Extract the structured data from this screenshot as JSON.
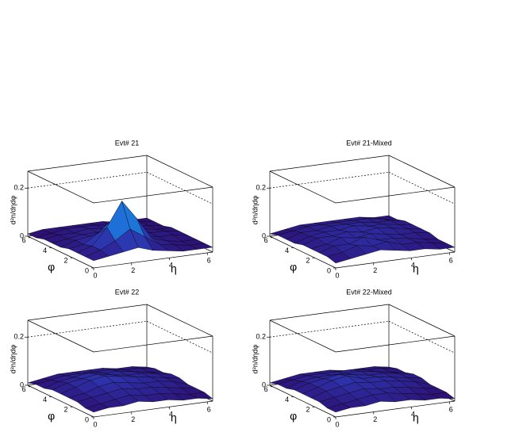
{
  "chart_data": [
    {
      "type": "surface",
      "title": "Evt# 21",
      "x_label": "η",
      "y_label": "φ",
      "z_label": "d²n/dηdφ",
      "x": [
        0,
        0.79,
        1.57,
        2.36,
        3.14,
        3.93,
        4.71,
        5.5,
        6.28
      ],
      "y": [
        0,
        0.79,
        1.57,
        2.36,
        3.14,
        3.93,
        4.71,
        5.5,
        6.28
      ],
      "xlim": [
        0,
        6.28
      ],
      "ylim": [
        0,
        6.28
      ],
      "zlim": [
        0,
        0.27
      ],
      "xticks": [
        0,
        2,
        4,
        6
      ],
      "yticks": [
        0,
        2,
        4,
        6
      ],
      "zticks": [
        0,
        0.2
      ],
      "colormap": [
        "#2b0863",
        "#2e2fa8",
        "#1e6fd8",
        "#20c2d6",
        "#3cf07c"
      ],
      "z": [
        [
          0.03,
          0.04,
          0.05,
          0.06,
          0.04,
          0.03,
          0.02,
          0.02,
          0.02
        ],
        [
          0.03,
          0.05,
          0.08,
          0.12,
          0.08,
          0.04,
          0.03,
          0.02,
          0.02
        ],
        [
          0.03,
          0.05,
          0.12,
          0.22,
          0.14,
          0.05,
          0.03,
          0.02,
          0.02
        ],
        [
          0.03,
          0.04,
          0.08,
          0.13,
          0.09,
          0.04,
          0.03,
          0.03,
          0.02
        ],
        [
          0.02,
          0.04,
          0.05,
          0.06,
          0.05,
          0.04,
          0.03,
          0.03,
          0.02
        ],
        [
          0.02,
          0.03,
          0.04,
          0.04,
          0.04,
          0.03,
          0.03,
          0.02,
          0.02
        ],
        [
          0.02,
          0.03,
          0.03,
          0.04,
          0.03,
          0.03,
          0.02,
          0.02,
          0.01
        ],
        [
          0.01,
          0.02,
          0.03,
          0.03,
          0.03,
          0.02,
          0.02,
          0.02,
          0.01
        ],
        [
          0.01,
          0.02,
          0.02,
          0.02,
          0.02,
          0.02,
          0.01,
          0.01,
          0.01
        ]
      ]
    },
    {
      "type": "surface",
      "title": "Evt# 21-Mixed",
      "x_label": "η",
      "y_label": "φ",
      "z_label": "d²n/dηdφ",
      "x": [
        0,
        0.79,
        1.57,
        2.36,
        3.14,
        3.93,
        4.71,
        5.5,
        6.28
      ],
      "y": [
        0,
        0.79,
        1.57,
        2.36,
        3.14,
        3.93,
        4.71,
        5.5,
        6.28
      ],
      "xlim": [
        0,
        6.28
      ],
      "ylim": [
        0,
        6.28
      ],
      "zlim": [
        0,
        0.27
      ],
      "xticks": [
        0,
        2,
        4,
        6
      ],
      "yticks": [
        0,
        2,
        4,
        6
      ],
      "zticks": [
        0,
        0.2
      ],
      "colormap": [
        "#2b0863",
        "#2e2fa8",
        "#1e6fd8",
        "#20c2d6",
        "#3cf07c"
      ],
      "z": [
        [
          0.02,
          0.03,
          0.04,
          0.05,
          0.04,
          0.03,
          0.03,
          0.02,
          0.02
        ],
        [
          0.03,
          0.04,
          0.06,
          0.05,
          0.06,
          0.04,
          0.04,
          0.03,
          0.02
        ],
        [
          0.03,
          0.05,
          0.05,
          0.07,
          0.05,
          0.05,
          0.04,
          0.03,
          0.02
        ],
        [
          0.03,
          0.04,
          0.06,
          0.05,
          0.06,
          0.05,
          0.04,
          0.04,
          0.03
        ],
        [
          0.03,
          0.05,
          0.05,
          0.06,
          0.05,
          0.06,
          0.05,
          0.04,
          0.03
        ],
        [
          0.02,
          0.04,
          0.05,
          0.05,
          0.06,
          0.05,
          0.05,
          0.04,
          0.03
        ],
        [
          0.02,
          0.04,
          0.04,
          0.05,
          0.05,
          0.05,
          0.04,
          0.04,
          0.03
        ],
        [
          0.02,
          0.03,
          0.04,
          0.04,
          0.04,
          0.04,
          0.04,
          0.03,
          0.02
        ],
        [
          0.01,
          0.02,
          0.03,
          0.03,
          0.03,
          0.03,
          0.03,
          0.02,
          0.02
        ]
      ]
    },
    {
      "type": "surface",
      "title": "Evt# 22",
      "x_label": "η",
      "y_label": "φ",
      "z_label": "d²n/dηdφ",
      "x": [
        0,
        0.79,
        1.57,
        2.36,
        3.14,
        3.93,
        4.71,
        5.5,
        6.28
      ],
      "y": [
        0,
        0.79,
        1.57,
        2.36,
        3.14,
        3.93,
        4.71,
        5.5,
        6.28
      ],
      "xlim": [
        0,
        6.28
      ],
      "ylim": [
        0,
        6.28
      ],
      "zlim": [
        0,
        0.27
      ],
      "xticks": [
        0,
        2,
        4,
        6
      ],
      "yticks": [
        0,
        2,
        4,
        6
      ],
      "zticks": [
        0,
        0.2
      ],
      "colormap": [
        "#2b0863",
        "#2e2fa8",
        "#1e6fd8",
        "#20c2d6",
        "#3cf07c"
      ],
      "z": [
        [
          0.02,
          0.03,
          0.03,
          0.04,
          0.03,
          0.03,
          0.02,
          0.02,
          0.01
        ],
        [
          0.02,
          0.03,
          0.04,
          0.05,
          0.04,
          0.04,
          0.03,
          0.02,
          0.02
        ],
        [
          0.03,
          0.04,
          0.05,
          0.06,
          0.05,
          0.05,
          0.04,
          0.03,
          0.02
        ],
        [
          0.03,
          0.04,
          0.06,
          0.07,
          0.06,
          0.05,
          0.05,
          0.04,
          0.02
        ],
        [
          0.03,
          0.05,
          0.07,
          0.08,
          0.07,
          0.06,
          0.05,
          0.04,
          0.03
        ],
        [
          0.03,
          0.05,
          0.06,
          0.07,
          0.06,
          0.05,
          0.05,
          0.04,
          0.03
        ],
        [
          0.02,
          0.04,
          0.05,
          0.06,
          0.05,
          0.05,
          0.04,
          0.03,
          0.02
        ],
        [
          0.02,
          0.03,
          0.04,
          0.04,
          0.04,
          0.04,
          0.03,
          0.03,
          0.02
        ],
        [
          0.01,
          0.02,
          0.03,
          0.03,
          0.03,
          0.03,
          0.02,
          0.02,
          0.01
        ]
      ]
    },
    {
      "type": "surface",
      "title": "Evt# 22-Mixed",
      "x_label": "η",
      "y_label": "φ",
      "z_label": "d²n/dηdφ",
      "x": [
        0,
        0.79,
        1.57,
        2.36,
        3.14,
        3.93,
        4.71,
        5.5,
        6.28
      ],
      "y": [
        0,
        0.79,
        1.57,
        2.36,
        3.14,
        3.93,
        4.71,
        5.5,
        6.28
      ],
      "xlim": [
        0,
        6.28
      ],
      "ylim": [
        0,
        6.28
      ],
      "zlim": [
        0,
        0.27
      ],
      "xticks": [
        0,
        2,
        4,
        6
      ],
      "yticks": [
        0,
        2,
        4,
        6
      ],
      "zticks": [
        0,
        0.2
      ],
      "colormap": [
        "#2b0863",
        "#2e2fa8",
        "#1e6fd8",
        "#20c2d6",
        "#3cf07c"
      ],
      "z": [
        [
          0.02,
          0.03,
          0.03,
          0.04,
          0.03,
          0.03,
          0.02,
          0.02,
          0.01
        ],
        [
          0.02,
          0.03,
          0.04,
          0.05,
          0.05,
          0.04,
          0.03,
          0.02,
          0.02
        ],
        [
          0.03,
          0.04,
          0.05,
          0.06,
          0.05,
          0.05,
          0.04,
          0.03,
          0.02
        ],
        [
          0.03,
          0.05,
          0.06,
          0.07,
          0.06,
          0.06,
          0.05,
          0.04,
          0.02
        ],
        [
          0.03,
          0.05,
          0.07,
          0.08,
          0.06,
          0.06,
          0.05,
          0.04,
          0.03
        ],
        [
          0.03,
          0.05,
          0.06,
          0.07,
          0.06,
          0.05,
          0.05,
          0.04,
          0.03
        ],
        [
          0.02,
          0.04,
          0.05,
          0.05,
          0.05,
          0.05,
          0.04,
          0.03,
          0.02
        ],
        [
          0.02,
          0.03,
          0.04,
          0.04,
          0.04,
          0.04,
          0.03,
          0.03,
          0.02
        ],
        [
          0.01,
          0.02,
          0.03,
          0.03,
          0.03,
          0.02,
          0.02,
          0.02,
          0.01
        ]
      ]
    }
  ]
}
